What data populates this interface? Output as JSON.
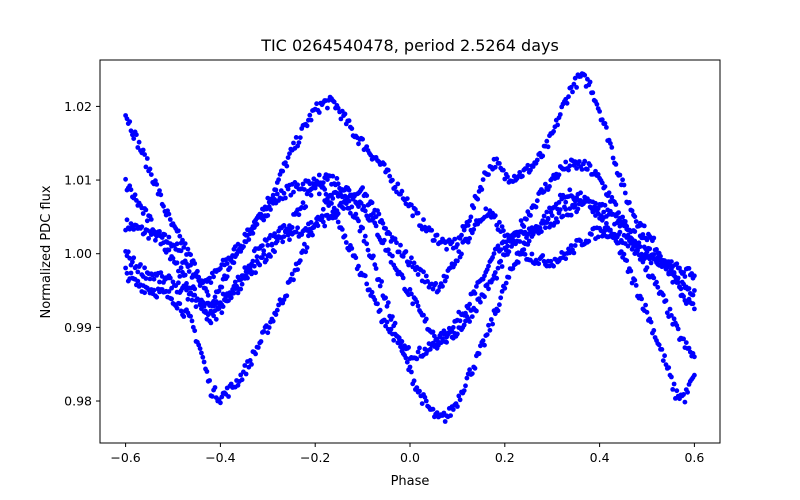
{
  "chart_data": {
    "type": "scatter",
    "title": "TIC 0264540478, period 2.5264 days",
    "xlabel": "Phase",
    "ylabel": "Normalized PDC flux",
    "xlim": [
      -0.654,
      0.654
    ],
    "ylim": [
      0.9743,
      1.0263
    ],
    "xticks": [
      -0.6,
      -0.4,
      -0.2,
      0.0,
      0.2,
      0.4,
      0.6
    ],
    "xtick_labels": [
      "−0.6",
      "−0.4",
      "−0.2",
      "0.0",
      "0.2",
      "0.4",
      "0.6"
    ],
    "yticks": [
      0.98,
      0.99,
      1.0,
      1.01,
      1.02
    ],
    "ytick_labels": [
      "0.98",
      "0.99",
      "1.00",
      "1.01",
      "1.02"
    ],
    "grid": false,
    "legend": "none",
    "marker_color": "#0000ff",
    "series": [
      {
        "x": [
          -0.6,
          -0.58,
          -0.56,
          -0.54,
          -0.52,
          -0.5,
          -0.48,
          -0.46,
          -0.44,
          -0.42,
          -0.4,
          -0.38,
          -0.36,
          -0.34,
          -0.32,
          -0.3,
          -0.28,
          -0.26,
          -0.24,
          -0.22,
          -0.2,
          -0.18,
          -0.16,
          -0.14,
          -0.12,
          -0.1,
          -0.08,
          -0.06,
          -0.04,
          -0.02,
          0.0,
          0.02,
          0.04,
          0.06,
          0.08,
          0.1,
          0.12,
          0.14,
          0.16,
          0.18,
          0.2,
          0.22,
          0.24,
          0.26,
          0.28,
          0.3,
          0.32,
          0.34,
          0.36,
          0.38,
          0.4,
          0.42,
          0.44,
          0.46,
          0.48,
          0.5,
          0.52,
          0.54,
          0.56,
          0.58,
          0.6
        ],
        "y": [
          1.004,
          1.0035,
          1.003,
          1.0025,
          1.002,
          1.0015,
          0.9995,
          0.9975,
          0.9965,
          0.9965,
          0.998,
          0.9995,
          1.001,
          1.0025,
          1.0045,
          1.006,
          1.0075,
          1.0085,
          1.009,
          1.0095,
          1.0095,
          1.008,
          1.0055,
          1.0025,
          0.9995,
          0.997,
          0.9945,
          0.9915,
          0.9895,
          0.9875,
          0.9865,
          0.9865,
          0.987,
          0.988,
          0.9895,
          0.991,
          0.993,
          0.995,
          0.9975,
          1.0,
          1.001,
          1.002,
          1.0025,
          1.003,
          1.0035,
          1.0045,
          1.0055,
          1.006,
          1.0065,
          1.007,
          1.0065,
          1.0055,
          1.004,
          1.003,
          1.002,
          1.001,
          0.9995,
          0.998,
          0.9965,
          0.9955,
          0.995
        ]
      },
      {
        "x": [
          -0.6,
          -0.58,
          -0.56,
          -0.54,
          -0.52,
          -0.5,
          -0.48,
          -0.46,
          -0.44,
          -0.42,
          -0.4,
          -0.38,
          -0.36,
          -0.34,
          -0.32,
          -0.3,
          -0.28,
          -0.26,
          -0.24,
          -0.22,
          -0.2,
          -0.18,
          -0.16,
          -0.14,
          -0.12,
          -0.1,
          -0.08,
          -0.06,
          -0.04,
          -0.02,
          0.0,
          0.02,
          0.04,
          0.06,
          0.08,
          0.1,
          0.12,
          0.14,
          0.16,
          0.18,
          0.2,
          0.22,
          0.24,
          0.26,
          0.28,
          0.3,
          0.32,
          0.34,
          0.36,
          0.38,
          0.4,
          0.42,
          0.44,
          0.46,
          0.48,
          0.5,
          0.52,
          0.54,
          0.56,
          0.58,
          0.6
        ],
        "y": [
          1.019,
          1.016,
          1.013,
          1.01,
          1.0065,
          1.0035,
          1.0015,
          0.999,
          0.996,
          0.993,
          0.9955,
          0.998,
          1.0005,
          1.003,
          1.005,
          1.007,
          1.0095,
          1.0125,
          1.015,
          1.0175,
          1.0195,
          1.0205,
          1.0205,
          1.0185,
          1.0165,
          1.015,
          1.0135,
          1.012,
          1.01,
          1.0085,
          1.0065,
          1.0045,
          1.003,
          1.002,
          1.001,
          1.0015,
          1.004,
          1.0075,
          1.011,
          1.0125,
          1.0105,
          1.0105,
          1.011,
          1.012,
          1.0135,
          1.016,
          1.0195,
          1.0225,
          1.024,
          1.023,
          1.0195,
          1.0155,
          1.011,
          1.007,
          1.0045,
          1.0025,
          1.001,
          0.9985,
          0.996,
          0.994,
          0.9925
        ]
      },
      {
        "x": [
          -0.6,
          -0.58,
          -0.56,
          -0.54,
          -0.52,
          -0.5,
          -0.48,
          -0.46,
          -0.44,
          -0.42,
          -0.4,
          -0.38,
          -0.36,
          -0.34,
          -0.32,
          -0.3,
          -0.28,
          -0.26,
          -0.24,
          -0.22,
          -0.2,
          -0.18,
          -0.16,
          -0.14,
          -0.12,
          -0.1,
          -0.08,
          -0.06,
          -0.04,
          -0.02,
          0.0,
          0.02,
          0.04,
          0.06,
          0.08,
          0.1,
          0.12,
          0.14,
          0.16,
          0.18,
          0.2,
          0.22,
          0.24,
          0.26,
          0.28,
          0.3,
          0.32,
          0.34,
          0.36,
          0.38,
          0.4,
          0.42,
          0.44,
          0.46,
          0.48,
          0.5,
          0.52,
          0.54,
          0.56,
          0.58,
          0.6
        ],
        "y": [
          0.9975,
          0.996,
          0.9955,
          0.995,
          0.9945,
          0.994,
          0.9925,
          0.9905,
          0.9865,
          0.9815,
          0.9805,
          0.9815,
          0.983,
          0.985,
          0.9875,
          0.99,
          0.9925,
          0.995,
          0.998,
          1.001,
          1.004,
          1.0065,
          1.008,
          1.0075,
          1.0055,
          1.003,
          0.9995,
          0.9955,
          0.9915,
          0.9875,
          0.984,
          0.981,
          0.979,
          0.9775,
          0.978,
          0.98,
          0.983,
          0.9855,
          0.9885,
          0.992,
          0.9955,
          0.9985,
          1.001,
          1.003,
          1.0045,
          1.006,
          1.0075,
          1.008,
          1.0075,
          1.0065,
          1.005,
          1.003,
          1.001,
          0.998,
          0.995,
          0.992,
          0.9885,
          0.985,
          0.981,
          0.9805,
          0.9835
        ]
      },
      {
        "x": [
          -0.6,
          -0.58,
          -0.56,
          -0.54,
          -0.52,
          -0.5,
          -0.48,
          -0.46,
          -0.44,
          -0.42,
          -0.4,
          -0.38,
          -0.36,
          -0.34,
          -0.32,
          -0.3,
          -0.28,
          -0.26,
          -0.24,
          -0.22,
          -0.2,
          -0.18,
          -0.16,
          -0.14,
          -0.12,
          -0.1,
          -0.08,
          -0.06,
          -0.04,
          -0.02,
          0.0,
          0.02,
          0.04,
          0.06,
          0.08,
          0.1,
          0.12,
          0.14,
          0.16,
          0.18,
          0.2,
          0.22,
          0.24,
          0.26,
          0.28,
          0.3,
          0.32,
          0.34,
          0.36,
          0.38,
          0.4,
          0.42,
          0.44,
          0.46,
          0.48,
          0.5,
          0.52,
          0.54,
          0.56,
          0.58,
          0.6
        ],
        "y": [
          1.0095,
          1.0075,
          1.0055,
          1.0035,
          1.0015,
          0.9995,
          0.997,
          0.995,
          0.993,
          0.991,
          0.9925,
          0.9945,
          0.9965,
          0.9985,
          1.0005,
          1.0015,
          1.0025,
          1.0035,
          1.005,
          1.007,
          1.0095,
          1.0105,
          1.01,
          1.009,
          1.008,
          1.0065,
          1.0045,
          1.002,
          0.9995,
          0.997,
          0.9945,
          0.992,
          0.99,
          0.9885,
          0.9885,
          0.9895,
          0.991,
          0.993,
          0.995,
          0.997,
          0.9995,
          1.002,
          1.0045,
          1.0065,
          1.0085,
          1.01,
          1.0115,
          1.012,
          1.012,
          1.0115,
          1.01,
          1.008,
          1.0055,
          1.003,
          1.0005,
          0.998,
          0.9955,
          0.993,
          0.99,
          0.9875,
          0.986
        ]
      },
      {
        "x": [
          -0.6,
          -0.58,
          -0.56,
          -0.54,
          -0.52,
          -0.5,
          -0.48,
          -0.46,
          -0.44,
          -0.42,
          -0.4,
          -0.38,
          -0.36,
          -0.34,
          -0.32,
          -0.3,
          -0.28,
          -0.26,
          -0.24,
          -0.22,
          -0.2,
          -0.18,
          -0.16,
          -0.14,
          -0.12,
          -0.1,
          -0.08,
          -0.06,
          -0.04,
          -0.02,
          0.0,
          0.02,
          0.04,
          0.06,
          0.08,
          0.1,
          0.12,
          0.14,
          0.16,
          0.18,
          0.2,
          0.22,
          0.24,
          0.26,
          0.28,
          0.3,
          0.32,
          0.34,
          0.36,
          0.38,
          0.4,
          0.42,
          0.44,
          0.46,
          0.48,
          0.5,
          0.52,
          0.54,
          0.56,
          0.58,
          0.6
        ],
        "y": [
          1.0,
          0.9985,
          0.9975,
          0.997,
          0.9965,
          0.996,
          0.995,
          0.994,
          0.993,
          0.9925,
          0.9935,
          0.9945,
          0.9955,
          0.997,
          0.9985,
          1.0,
          1.0015,
          1.0025,
          1.003,
          1.0035,
          1.004,
          1.0045,
          1.0055,
          1.0065,
          1.0075,
          1.0085,
          1.0065,
          1.004,
          1.002,
          1.0005,
          0.999,
          0.9975,
          0.996,
          0.9955,
          0.997,
          0.9995,
          1.002,
          1.004,
          1.0055,
          1.0045,
          1.0025,
          1.001,
          1.0,
          0.9995,
          0.999,
          0.999,
          0.9995,
          1.0005,
          1.0015,
          1.0025,
          1.003,
          1.003,
          1.0025,
          1.0015,
          1.0005,
          0.9995,
          0.999,
          0.9985,
          0.998,
          0.9975,
          0.997
        ]
      }
    ]
  }
}
